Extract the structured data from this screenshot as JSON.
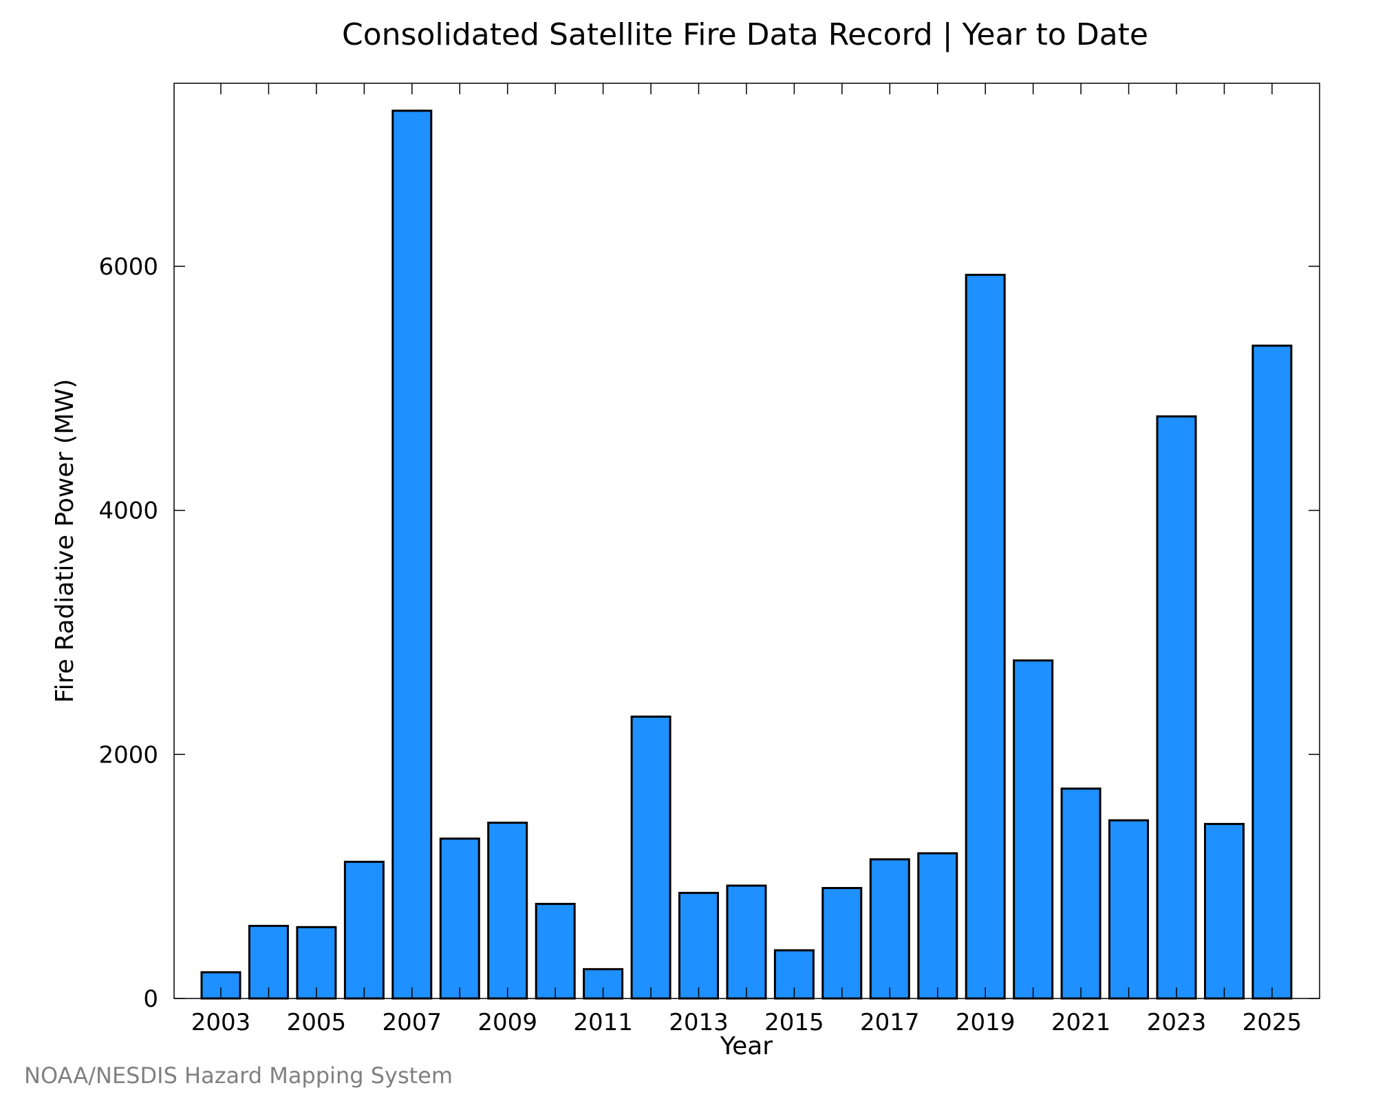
{
  "chart_data": {
    "type": "bar",
    "title": "Consolidated Satellite Fire Data Record | Year to Date",
    "xlabel": "Year",
    "ylabel": "Fire Radiative Power (MW)",
    "source": "NOAA/NESDIS Hazard Mapping System",
    "categories": [
      "2003",
      "2004",
      "2005",
      "2006",
      "2007",
      "2008",
      "2009",
      "2010",
      "2011",
      "2012",
      "2013",
      "2014",
      "2015",
      "2016",
      "2017",
      "2018",
      "2019",
      "2020",
      "2021",
      "2022",
      "2023",
      "2024",
      "2025"
    ],
    "values": [
      215,
      595,
      585,
      1120,
      7275,
      1310,
      1440,
      775,
      240,
      2310,
      865,
      925,
      395,
      905,
      1140,
      1190,
      5930,
      2770,
      1720,
      1460,
      4770,
      1430,
      5350
    ],
    "x_tick_labels": [
      "2003",
      "2005",
      "2007",
      "2009",
      "2011",
      "2013",
      "2015",
      "2017",
      "2019",
      "2021",
      "2023",
      "2025"
    ],
    "y_ticks": [
      0,
      2000,
      4000,
      6000
    ],
    "y_tick_labels": [
      "0",
      "2000",
      "4000",
      "6000"
    ],
    "ylim": [
      0,
      7500
    ],
    "grid": false,
    "legend": "none",
    "bar_color": "#1e90ff",
    "bar_edge_color": "#000000"
  }
}
